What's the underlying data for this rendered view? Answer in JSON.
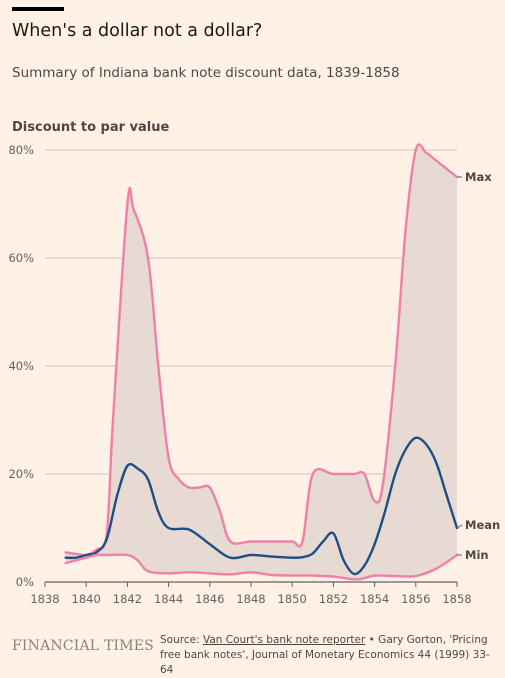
{
  "header": {
    "title": "When's a dollar not a dollar?",
    "subtitle": "Summary of Indiana bank note discount data, 1839-1858"
  },
  "chart_data": {
    "type": "line",
    "title": "When's a dollar not a dollar?",
    "subtitle": "Summary of Indiana bank note discount data, 1839-1858",
    "ylabel": "Discount to par value",
    "xlabel": "",
    "xlim": [
      1838,
      1858
    ],
    "ylim": [
      0,
      80
    ],
    "x_ticks": [
      "1838",
      "1840",
      "1842",
      "1844",
      "1846",
      "1848",
      "1850",
      "1852",
      "1854",
      "1856",
      "1858"
    ],
    "y_ticks": [
      "0%",
      "20%",
      "40%",
      "60%",
      "80%"
    ],
    "grid": true,
    "shaded_range": "between Min and Max",
    "series": [
      {
        "name": "Max",
        "color": "#f27fa8",
        "x": [
          1839,
          1839.5,
          1840,
          1840.5,
          1841,
          1841.3,
          1842,
          1842.3,
          1843,
          1843.5,
          1844,
          1844.5,
          1845,
          1845.5,
          1846,
          1846.5,
          1847,
          1848,
          1849,
          1850,
          1850.5,
          1851,
          1852,
          1853,
          1853.5,
          1854,
          1854.4,
          1855,
          1855.5,
          1856,
          1856.5,
          1857,
          1857.5,
          1858
        ],
        "y": [
          5.5,
          5.2,
          5.0,
          6.0,
          9.0,
          30.0,
          70.0,
          69.0,
          60.0,
          40.0,
          23.0,
          19.0,
          17.5,
          17.5,
          17.5,
          13.0,
          7.5,
          7.5,
          7.5,
          7.5,
          7.5,
          20.0,
          20.0,
          20.0,
          20.0,
          15.0,
          18.0,
          40.0,
          65.0,
          80.0,
          79.5,
          78.0,
          76.5,
          75.0
        ]
      },
      {
        "name": "Mean",
        "color": "#1f4e86",
        "x": [
          1839,
          1839.5,
          1840,
          1840.5,
          1841,
          1841.5,
          1842,
          1842.5,
          1843,
          1843.5,
          1844,
          1845,
          1846,
          1847,
          1848,
          1849,
          1850,
          1850.5,
          1851,
          1851.5,
          1852,
          1852.5,
          1853,
          1853.5,
          1854,
          1854.5,
          1855,
          1855.5,
          1856,
          1856.5,
          1857,
          1857.5,
          1858
        ],
        "y": [
          4.5,
          4.5,
          5.0,
          5.5,
          8.0,
          16.0,
          21.5,
          21.0,
          19.0,
          13.0,
          10.0,
          9.7,
          7.0,
          4.5,
          5.0,
          4.7,
          4.5,
          4.6,
          5.3,
          7.5,
          9.0,
          4.0,
          1.5,
          3.0,
          7.0,
          13.0,
          20.0,
          24.5,
          26.7,
          25.5,
          22.0,
          16.0,
          10.0
        ]
      },
      {
        "name": "Min",
        "color": "#f27fa8",
        "x": [
          1839,
          1840,
          1840.5,
          1841,
          1842,
          1842.5,
          1843,
          1844,
          1845,
          1846,
          1847,
          1848,
          1849,
          1850,
          1851,
          1852,
          1853,
          1853.5,
          1854,
          1855,
          1856,
          1857,
          1858
        ],
        "y": [
          3.5,
          4.5,
          5.0,
          5.0,
          5.0,
          4.0,
          2.0,
          1.6,
          1.8,
          1.6,
          1.4,
          1.8,
          1.3,
          1.2,
          1.2,
          1.0,
          0.5,
          0.7,
          1.2,
          1.1,
          1.1,
          2.5,
          5.0
        ]
      }
    ]
  },
  "footer": {
    "logo": "FINANCIAL TIMES",
    "source_prefix": "Source: ",
    "source_link": "Van Court's bank note reporter",
    "source_rest": " • Gary Gorton, 'Pricing free bank notes', Journal of Monetary Economics 44 (1999) 33-64"
  },
  "colors": {
    "background": "#fff1e5",
    "band": "#e6dad3",
    "grid": "#cfc5bd",
    "text": "#33302e"
  }
}
